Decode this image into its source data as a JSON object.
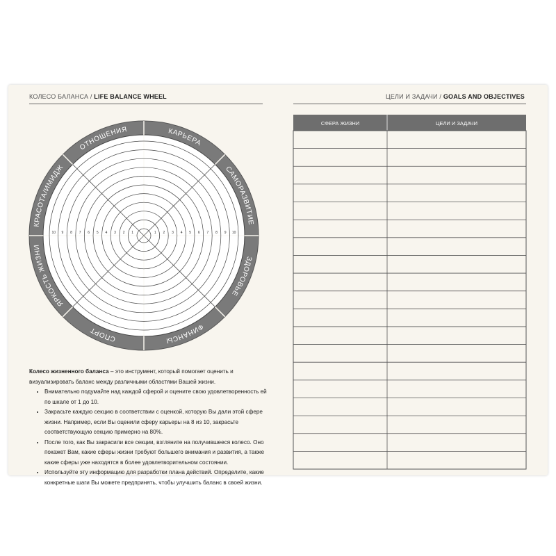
{
  "left_header": {
    "ru": "КОЛЕСО БАЛАНСА /",
    "en": "LIFE BALANCE WHEEL"
  },
  "right_header": {
    "ru": "ЦЕЛИ И ЗАДАЧИ /",
    "en": "GOALS AND OBJECTIVES"
  },
  "wheel": {
    "sectors": [
      "ОТНОШЕНИЯ",
      "КАРЬЕРА",
      "САМОРАЗВИТИЕ",
      "ЗДОРОВЬЕ",
      "ФИНАНСЫ",
      "СПОРТ",
      "ЯРКОСТЬ ЖИЗНИ",
      "КРАСОТА/ИМИДЖ"
    ],
    "scale": [
      1,
      2,
      3,
      4,
      5,
      6,
      7,
      8,
      9,
      10
    ]
  },
  "description": {
    "lead_bold": "Колесо жизненного баланса",
    "lead_rest": " – это инструмент, который помогает оценить и визуализировать баланс между различными областями Вашей жизни.",
    "bullets": [
      "Внимательно подумайте над каждой сферой и оцените свою удовлетворенность ей по шкале от 1 до 10.",
      "Закрасьте каждую секцию в соответствии с оценкой, которую Вы дали этой сфере жизни. Например, если Вы оценили сферу карьеры на 8 из 10, закрасьте соответствующую секцию примерно на 80%.",
      "После того, как Вы закрасили все секции, взгляните на получившееся колесо. Оно покажет Вам, какие сферы жизни требуют большего внимания и развития, а также какие сферы уже находятся в более удовлетворительном состоянии.",
      "Используйте эту информацию для разработки плана действий. Определите, какие конкретные шаги Вы можете предпринять, чтобы улучшить баланс в своей жизни."
    ]
  },
  "table": {
    "headers": [
      "СФЕРА ЖИЗНИ",
      "ЦЕЛИ И ЗАДАЧИ"
    ]
  }
}
